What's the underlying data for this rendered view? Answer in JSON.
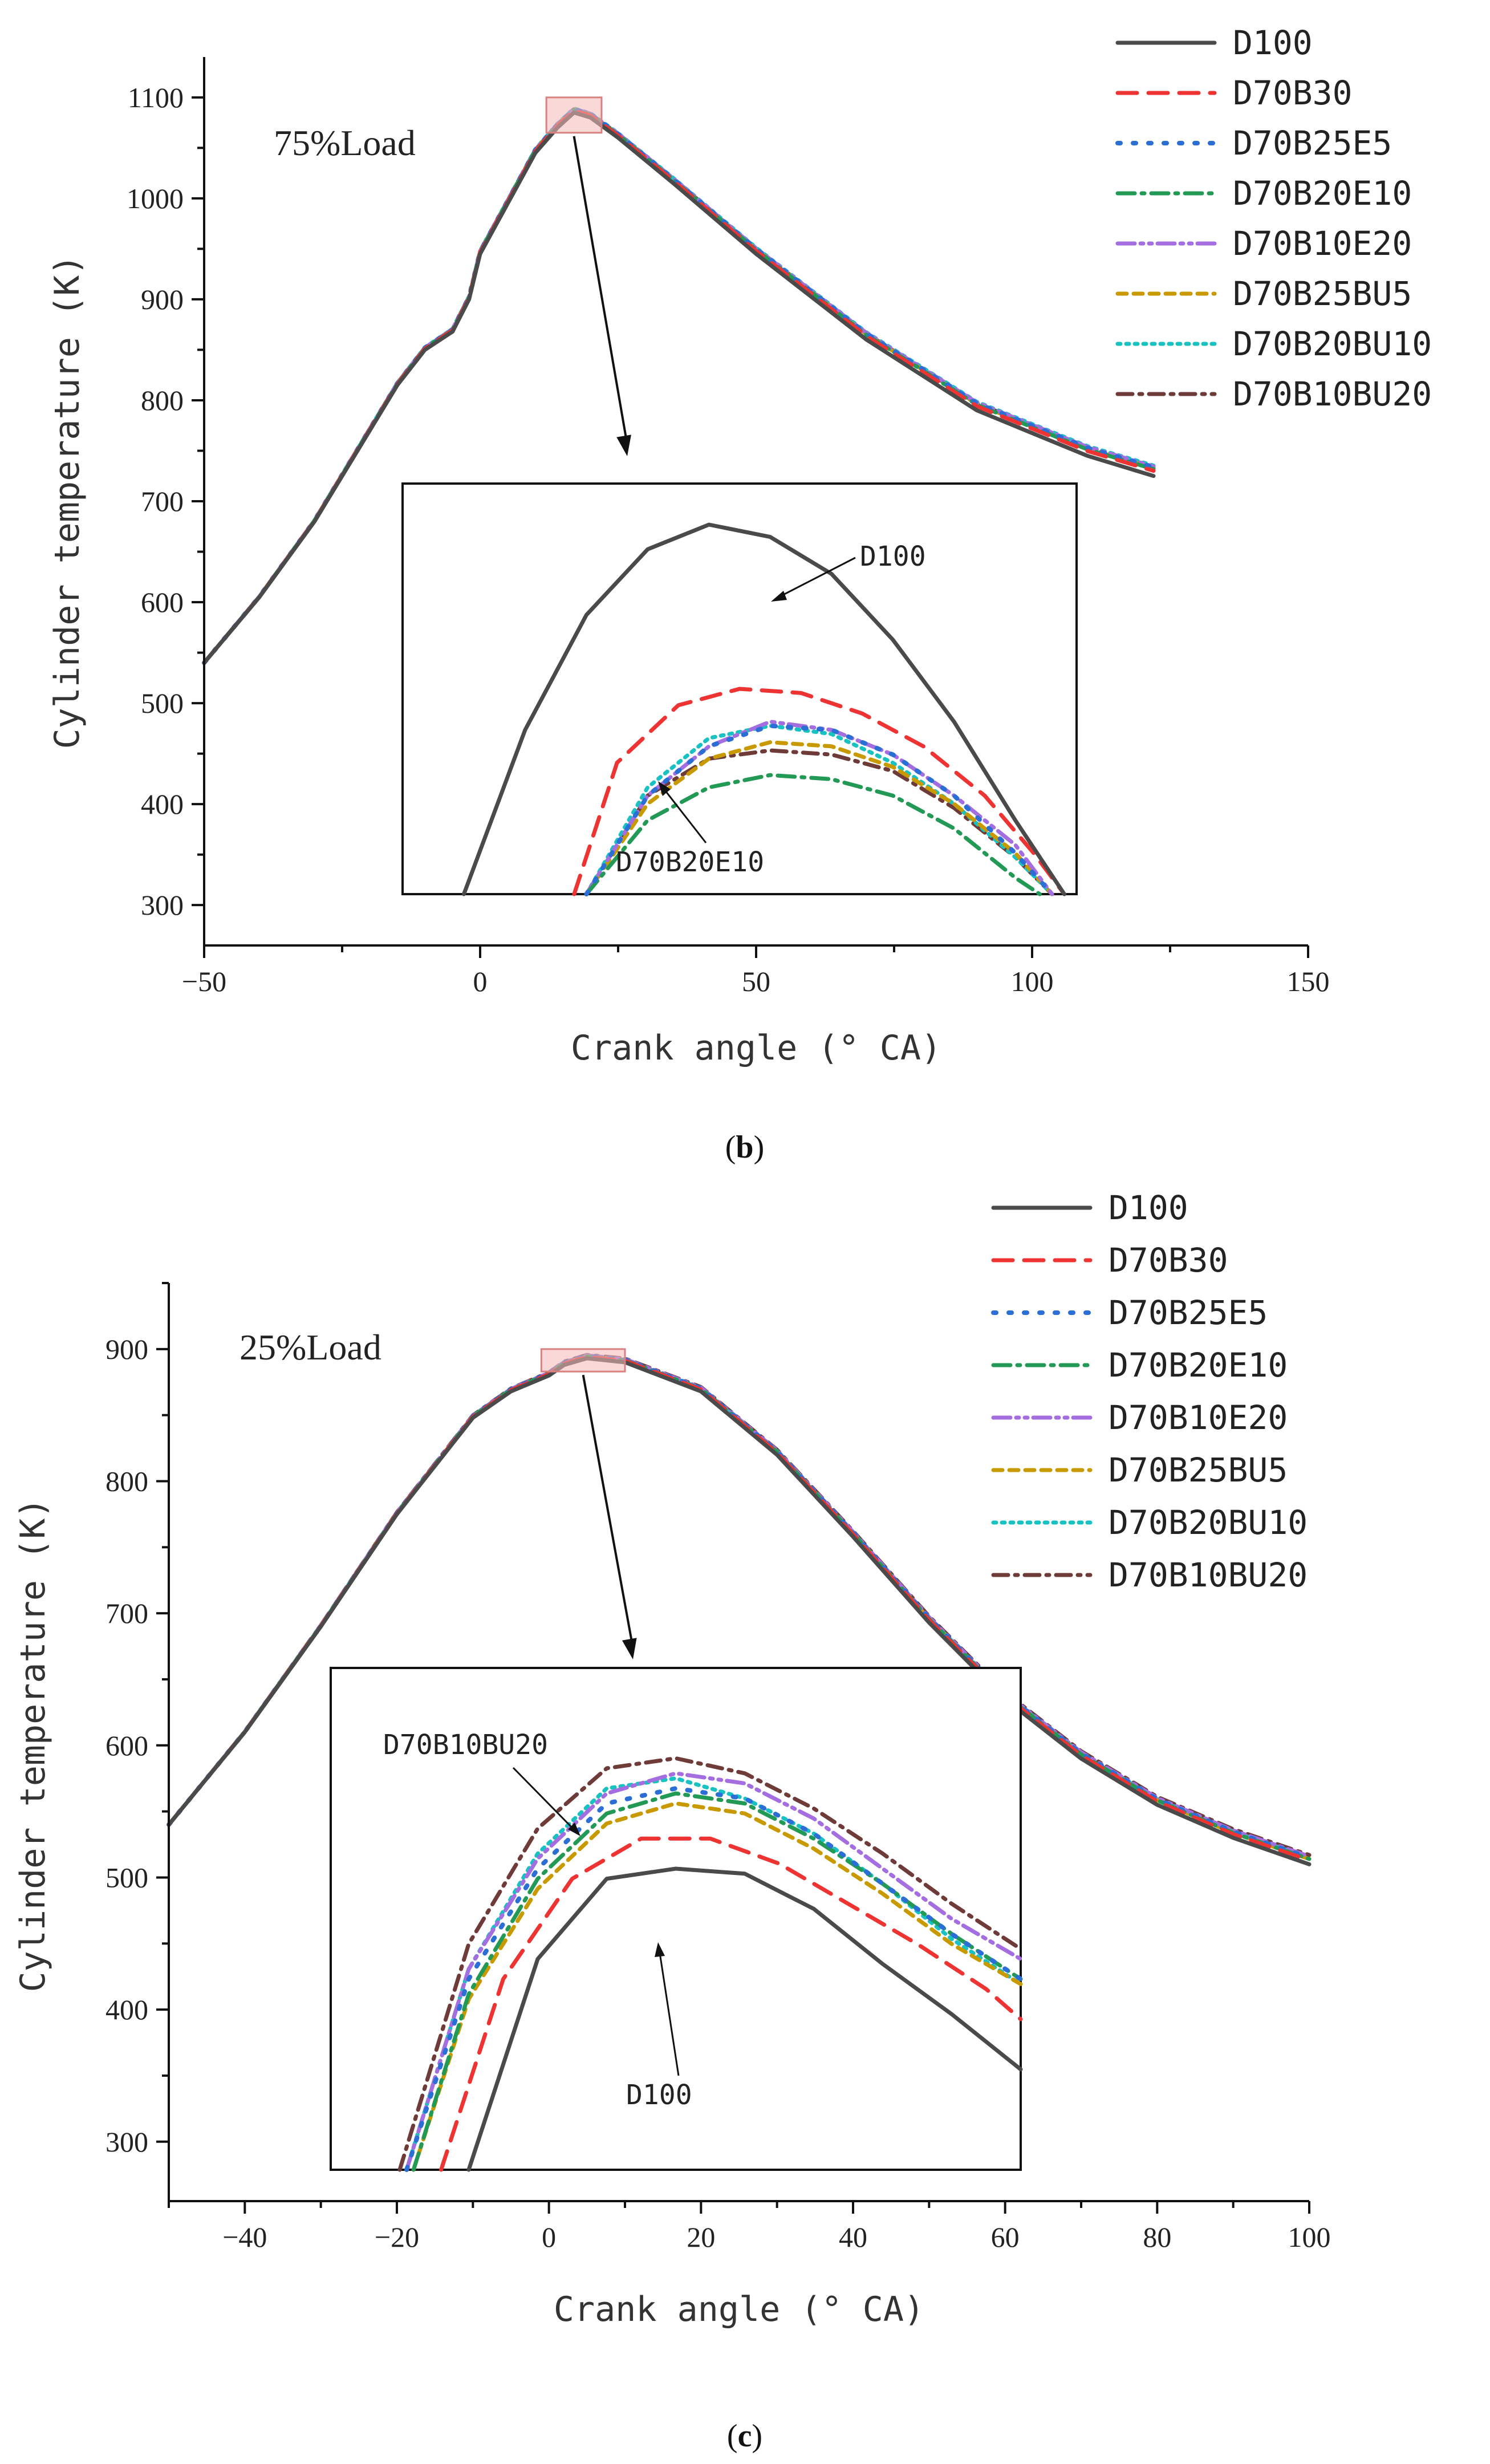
{
  "series_styles": [
    {
      "name": "D100",
      "color": "#4a4a4a",
      "dash": "",
      "width": 7
    },
    {
      "name": "D70B30",
      "color": "#ee3333",
      "dash": "34,20",
      "width": 7
    },
    {
      "name": "D70B25E5",
      "color": "#2b6fd6",
      "dash": "5,22",
      "width": 8
    },
    {
      "name": "D70B20E10",
      "color": "#229955",
      "dash": "30,12,5,12",
      "width": 7
    },
    {
      "name": "D70B10E20",
      "color": "#a46ee0",
      "dash": "30,10,5,10,5,10",
      "width": 7
    },
    {
      "name": "D70B25BU5",
      "color": "#c99a00",
      "dash": "16,12",
      "width": 7
    },
    {
      "name": "D70B20BU10",
      "color": "#18c2c2",
      "dash": "5,10",
      "width": 7
    },
    {
      "name": "D70B10BU20",
      "color": "#6e3b38",
      "dash": "26,12,5,12",
      "width": 7
    }
  ],
  "chart_data": [
    {
      "type": "line",
      "panel": "(b)",
      "caption_letter": "b",
      "caption_open": "(",
      "caption_close": ")",
      "load_label": "75%Load",
      "xlabel": "Crank angle (° CA)",
      "ylabel": "Cylinder temperature (K)",
      "xlim": [
        -50,
        150
      ],
      "ylim": [
        260,
        1140
      ],
      "xticks": [
        -50,
        0,
        50,
        100,
        150
      ],
      "yticks": [
        300,
        400,
        500,
        600,
        700,
        800,
        900,
        1000,
        1100
      ],
      "grid": false,
      "legend": "top-right",
      "series_common": {
        "x": [
          -50,
          -40,
          -30,
          -20,
          -15,
          -10,
          -5,
          -2,
          0,
          3,
          6,
          10,
          14,
          17,
          20,
          25,
          35,
          50,
          70,
          90,
          110,
          122
        ],
        "y": [
          540,
          605,
          680,
          770,
          815,
          850,
          868,
          900,
          945,
          975,
          1005,
          1045,
          1070,
          1085,
          1080,
          1060,
          1015,
          945,
          860,
          790,
          745,
          725
        ]
      },
      "series_offsets": {
        "D100": 0,
        "D70B30": 6,
        "D70B25E5": 10,
        "D70B20E10": 8,
        "D70B10E20": 11,
        "D70B25BU5": 9,
        "D70B20BU10": 12,
        "D70B10BU20": 10
      },
      "highlight": {
        "x": [
          12,
          22
        ],
        "y": [
          1065,
          1100
        ]
      },
      "inset": {
        "xlim": [
          0,
          110
        ],
        "ylim": [
          0,
          100
        ],
        "pointer_labels": [
          {
            "text": "D100",
            "series": "D100"
          },
          {
            "text": "D70B20E10",
            "series": "D70B20E10"
          }
        ],
        "curves": [
          {
            "name": "D100",
            "x": [
              10,
              20,
              30,
              40,
              50,
              60,
              70,
              80,
              90,
              100,
              108
            ],
            "y": [
              0,
              40,
              68,
              84,
              90,
              87,
              78,
              62,
              42,
              18,
              0
            ]
          },
          {
            "name": "D70B30",
            "x": [
              28,
              35,
              45,
              55,
              65,
              75,
              85,
              95,
              103,
              108
            ],
            "y": [
              0,
              32,
              46,
              50,
              49,
              44,
              36,
              24,
              10,
              0
            ]
          },
          {
            "name": "D70B25E5",
            "x": [
              30,
              40,
              50,
              60,
              70,
              80,
              90,
              100,
              106
            ],
            "y": [
              0,
              24,
              36,
              41,
              40,
              34,
              24,
              10,
              0
            ]
          },
          {
            "name": "D70B20E10",
            "x": [
              30,
              40,
              50,
              60,
              70,
              80,
              90,
              100,
              104
            ],
            "y": [
              0,
              18,
              26,
              29,
              28,
              24,
              16,
              4,
              0
            ]
          },
          {
            "name": "D70B10E20",
            "x": [
              30,
              40,
              50,
              60,
              70,
              80,
              90,
              100,
              106
            ],
            "y": [
              0,
              24,
              36,
              42,
              40,
              34,
              24,
              12,
              0
            ]
          },
          {
            "name": "D70B25BU5",
            "x": [
              30,
              40,
              50,
              60,
              70,
              80,
              90,
              100,
              106
            ],
            "y": [
              0,
              22,
              33,
              37,
              36,
              31,
              22,
              10,
              0
            ]
          },
          {
            "name": "D70B20BU10",
            "x": [
              30,
              40,
              50,
              60,
              70,
              80,
              90,
              100,
              106
            ],
            "y": [
              0,
              26,
              38,
              41,
              39,
              32,
              22,
              9,
              0
            ]
          },
          {
            "name": "D70B10BU20",
            "x": [
              30,
              40,
              50,
              60,
              70,
              80,
              90,
              100,
              106
            ],
            "y": [
              0,
              24,
              33,
              35,
              34,
              30,
              21,
              9,
              0
            ]
          }
        ]
      }
    },
    {
      "type": "line",
      "panel": "(c)",
      "caption_letter": "c",
      "caption_open": "(",
      "caption_close": ")",
      "load_label": "25%Load",
      "xlabel": "Crank angle (° CA)",
      "ylabel": "Cylinder temperature (K)",
      "xlim": [
        -50,
        100
      ],
      "ylim": [
        255,
        950
      ],
      "xticks": [
        -40,
        -20,
        0,
        20,
        40,
        60,
        80,
        100
      ],
      "yticks": [
        300,
        400,
        500,
        600,
        700,
        800,
        900
      ],
      "grid": false,
      "legend": "top-right",
      "series_common": {
        "x": [
          -50,
          -40,
          -30,
          -20,
          -10,
          -5,
          0,
          2,
          5,
          10,
          20,
          30,
          40,
          50,
          60,
          70,
          80,
          90,
          100
        ],
        "y": [
          540,
          610,
          690,
          775,
          848,
          868,
          880,
          888,
          893,
          890,
          868,
          820,
          758,
          693,
          635,
          590,
          555,
          530,
          510
        ]
      },
      "series_offsets": {
        "D100": 0,
        "D70B30": 3,
        "D70B25E5": 5,
        "D70B20E10": 4,
        "D70B10E20": 6,
        "D70B25BU5": 4,
        "D70B20BU10": 5,
        "D70B10BU20": 7
      },
      "highlight": {
        "x": [
          -1,
          10
        ],
        "y": [
          883,
          900
        ]
      },
      "inset": {
        "xlim": [
          0,
          100
        ],
        "ylim": [
          0,
          100
        ],
        "pointer_labels": [
          {
            "text": "D70B10BU20",
            "series": "D70B10BU20"
          },
          {
            "text": "D100",
            "series": "D100"
          }
        ],
        "curves": [
          {
            "name": "D100",
            "x": [
              20,
              30,
              40,
              50,
              60,
              70,
              80,
              90,
              100
            ],
            "y": [
              0,
              42,
              58,
              60,
              59,
              52,
              41,
              31,
              20
            ]
          },
          {
            "name": "D70B30",
            "x": [
              16,
              25,
              35,
              45,
              55,
              65,
              75,
              85,
              95,
              100
            ],
            "y": [
              0,
              38,
              58,
              66,
              66,
              61,
              53,
              45,
              36,
              30
            ]
          },
          {
            "name": "D70B25E5",
            "x": [
              11,
              20,
              30,
              40,
              50,
              60,
              70,
              80,
              90,
              100
            ],
            "y": [
              0,
              38,
              60,
              73,
              76,
              74,
              67,
              57,
              47,
              38
            ]
          },
          {
            "name": "D70B20E10",
            "x": [
              12,
              20,
              30,
              40,
              50,
              60,
              70,
              80,
              90,
              100
            ],
            "y": [
              0,
              35,
              58,
              71,
              75,
              73,
              66,
              57,
              47,
              38
            ]
          },
          {
            "name": "D70B10E20",
            "x": [
              11,
              20,
              30,
              40,
              50,
              60,
              70,
              80,
              90,
              100
            ],
            "y": [
              0,
              40,
              62,
              75,
              79,
              77,
              70,
              60,
              50,
              42
            ]
          },
          {
            "name": "D70B25BU5",
            "x": [
              12,
              20,
              30,
              40,
              50,
              60,
              70,
              80,
              90,
              100
            ],
            "y": [
              0,
              34,
              56,
              69,
              73,
              71,
              64,
              55,
              45,
              37
            ]
          },
          {
            "name": "D70B20BU10",
            "x": [
              11,
              20,
              30,
              40,
              50,
              60,
              70,
              80,
              90,
              100
            ],
            "y": [
              0,
              40,
              63,
              76,
              78,
              74,
              67,
              57,
              46,
              37
            ]
          },
          {
            "name": "D70B10BU20",
            "x": [
              10,
              20,
              30,
              40,
              50,
              60,
              70,
              80,
              90,
              100
            ],
            "y": [
              0,
              45,
              68,
              80,
              82,
              79,
              72,
              63,
              53,
              44
            ]
          }
        ]
      }
    }
  ]
}
